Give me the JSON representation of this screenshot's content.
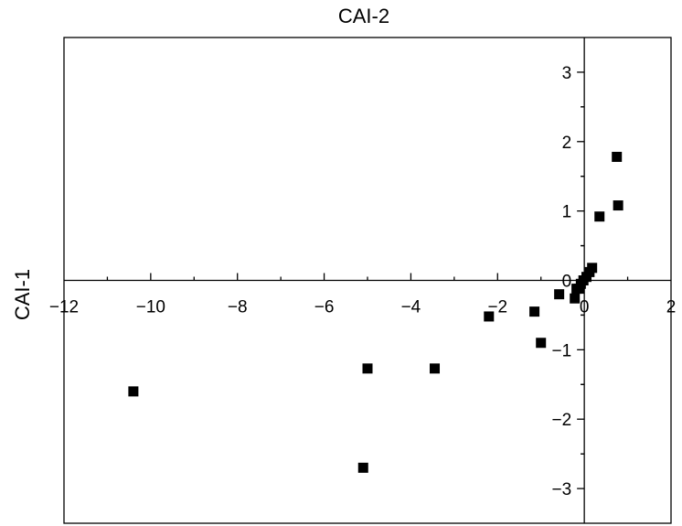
{
  "chart_data": {
    "type": "scatter",
    "title": "",
    "xlabel": "CAI-1",
    "ylabel": "CAI-2",
    "xlim": [
      -12,
      2
    ],
    "ylim": [
      -3.5,
      3.5
    ],
    "x_ticks": [
      -12,
      -10,
      -8,
      -6,
      -4,
      -2,
      0,
      2
    ],
    "x_tick_labels": [
      "−12",
      "−10",
      "−8",
      "−6",
      "−4",
      "−2",
      "0",
      "2"
    ],
    "y_ticks": [
      -3,
      -2,
      -1,
      0,
      1,
      2,
      3
    ],
    "y_tick_labels": [
      "−3",
      "−2",
      "−1",
      "0",
      "1",
      "2",
      "3"
    ],
    "grid": false,
    "marker": "square",
    "color": "#000000",
    "points": [
      {
        "x": 0.75,
        "y": 1.78
      },
      {
        "x": 0.78,
        "y": 1.08
      },
      {
        "x": 0.35,
        "y": 0.92
      },
      {
        "x": 0.18,
        "y": 0.18
      },
      {
        "x": 0.12,
        "y": 0.12
      },
      {
        "x": 0.05,
        "y": 0.05
      },
      {
        "x": -0.02,
        "y": 0.0
      },
      {
        "x": -0.08,
        "y": -0.05
      },
      {
        "x": -0.12,
        "y": -0.12
      },
      {
        "x": -0.18,
        "y": -0.12
      },
      {
        "x": -0.22,
        "y": -0.26
      },
      {
        "x": -0.58,
        "y": -0.2
      },
      {
        "x": -1.0,
        "y": -0.9
      },
      {
        "x": -1.15,
        "y": -0.45
      },
      {
        "x": -2.2,
        "y": -0.52
      },
      {
        "x": -3.45,
        "y": -1.27
      },
      {
        "x": -5.0,
        "y": -1.27
      },
      {
        "x": -5.1,
        "y": -2.7
      },
      {
        "x": -10.4,
        "y": -1.6
      }
    ]
  }
}
